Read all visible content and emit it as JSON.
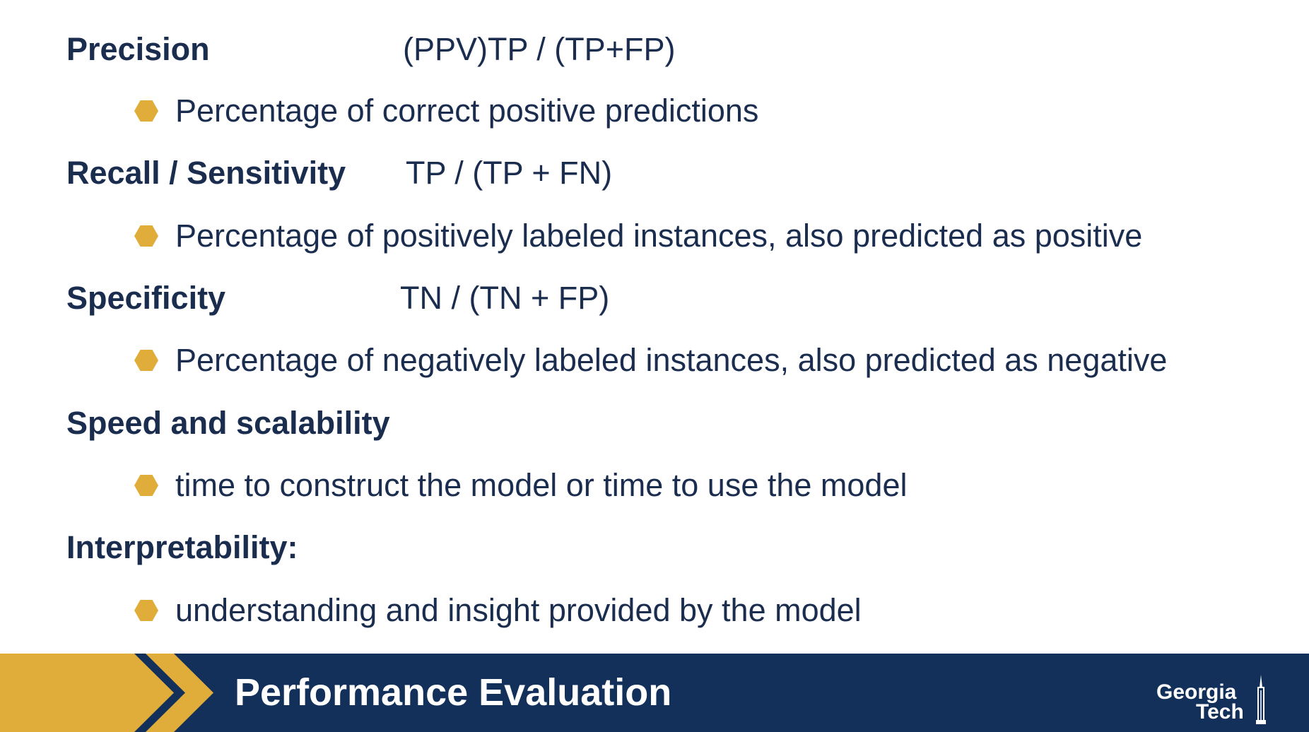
{
  "items": [
    {
      "term": "Precision",
      "formula": "(PPV)TP / (TP+FP)",
      "bullet": "Percentage of correct positive predictions"
    },
    {
      "term": "Recall / Sensitivity",
      "formula": "TP / (TP + FN)",
      "bullet": "Percentage of positively labeled instances, also predicted as positive"
    },
    {
      "term": "Specificity",
      "formula": "TN / (TN + FP)",
      "bullet": "Percentage of negatively labeled instances, also predicted as negative"
    },
    {
      "term": "Speed and scalability",
      "bullet": "time to construct the model or time to use the model"
    },
    {
      "term": "Interpretability:",
      "bullet": "understanding and insight provided by the model"
    }
  ],
  "footer": {
    "title": "Performance Evaluation",
    "logo_line1": "Georgia",
    "logo_line2": "Tech"
  },
  "colors": {
    "text": "#1b2d4f",
    "bullet": "#e1ad3a",
    "footer_bg": "#13305a",
    "gold": "#e1ad3a"
  }
}
